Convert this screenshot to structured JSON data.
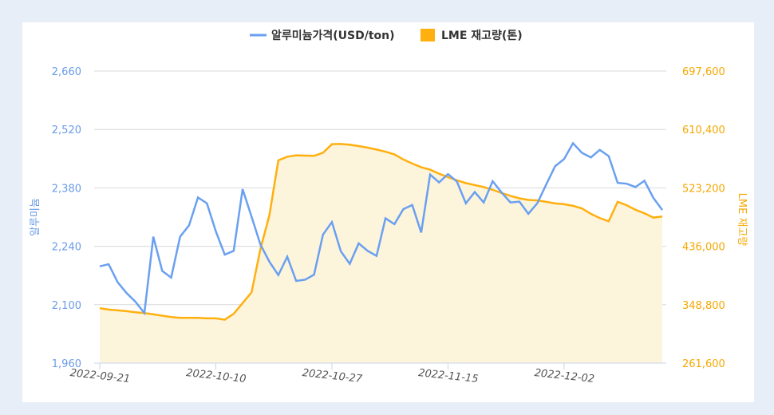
{
  "chart_data": {
    "type": "line",
    "legend": {
      "position": "top",
      "items": [
        {
          "label": "알루미늄가격(USD/ton)",
          "marker": "line",
          "color": "#6aa0f0"
        },
        {
          "label": "LME 재고량(톤)",
          "marker": "square",
          "color": "#ffb00f"
        }
      ]
    },
    "y_left": {
      "label": "알루미늄",
      "range": [
        1960,
        2660
      ],
      "ticks": [
        "2,660",
        "2,520",
        "2,380",
        "2,240",
        "2,100",
        "1,960"
      ],
      "tick_values": [
        2660,
        2520,
        2380,
        2240,
        2100,
        1960
      ],
      "color": "#6a9be8"
    },
    "y_right": {
      "label": "LME 재고량",
      "range": [
        261600,
        697600
      ],
      "ticks": [
        "697,600",
        "610,400",
        "523,200",
        "436,000",
        "348,800",
        "261,600"
      ],
      "tick_values": [
        697600,
        610400,
        523200,
        436000,
        348800,
        261600
      ],
      "color": "#f5a800"
    },
    "x_tick_labels": [
      "2022-09-21",
      "2022-10-10",
      "2022-10-27",
      "2022-11-15",
      "2022-12-02"
    ],
    "grid": true,
    "x": [
      "2022-09-21",
      "2022-09-22",
      "2022-09-23",
      "2022-09-26",
      "2022-09-27",
      "2022-09-28",
      "2022-09-29",
      "2022-09-30",
      "2022-10-03",
      "2022-10-04",
      "2022-10-05",
      "2022-10-06",
      "2022-10-07",
      "2022-10-10",
      "2022-10-11",
      "2022-10-12",
      "2022-10-13",
      "2022-10-14",
      "2022-10-17",
      "2022-10-18",
      "2022-10-19",
      "2022-10-20",
      "2022-10-21",
      "2022-10-24",
      "2022-10-25",
      "2022-10-26",
      "2022-10-27",
      "2022-10-28",
      "2022-10-31",
      "2022-11-01",
      "2022-11-02",
      "2022-11-03",
      "2022-11-04",
      "2022-11-07",
      "2022-11-08",
      "2022-11-09",
      "2022-11-10",
      "2022-11-11",
      "2022-11-14",
      "2022-11-15",
      "2022-11-16",
      "2022-11-17",
      "2022-11-18",
      "2022-11-21",
      "2022-11-22",
      "2022-11-23",
      "2022-11-24",
      "2022-11-25",
      "2022-11-28",
      "2022-11-29",
      "2022-11-30",
      "2022-12-01",
      "2022-12-02",
      "2022-12-05",
      "2022-12-06",
      "2022-12-07",
      "2022-12-08",
      "2022-12-09",
      "2022-12-12",
      "2022-12-13",
      "2022-12-14",
      "2022-12-15",
      "2022-12-16",
      "2022-12-19"
    ],
    "series": [
      {
        "name": "알루미늄가격(USD/ton)",
        "axis": "left",
        "color": "#6aa0f0",
        "values": [
          2192,
          2197,
          2154,
          2128,
          2107,
          2080,
          2263,
          2181,
          2165,
          2263,
          2290,
          2357,
          2343,
          2276,
          2220,
          2229,
          2377,
          2311,
          2244,
          2203,
          2171,
          2215,
          2157,
          2160,
          2172,
          2268,
          2298,
          2228,
          2198,
          2247,
          2229,
          2217,
          2307,
          2293,
          2329,
          2339,
          2273,
          2412,
          2393,
          2413,
          2395,
          2343,
          2370,
          2345,
          2396,
          2369,
          2345,
          2347,
          2318,
          2343,
          2388,
          2432,
          2449,
          2487,
          2464,
          2453,
          2471,
          2456,
          2392,
          2390,
          2382,
          2397,
          2356,
          2327
        ]
      },
      {
        "name": "LME 재고량(톤)",
        "axis": "right",
        "color": "#ffb00f",
        "fill": "#fdf4dc",
        "values": [
          343600,
          341600,
          340400,
          339200,
          337600,
          336400,
          334400,
          332400,
          330400,
          329200,
          329200,
          329200,
          328400,
          328400,
          326400,
          335200,
          351200,
          367200,
          432400,
          482300,
          564300,
          569600,
          571700,
          571300,
          571000,
          575600,
          588400,
          588800,
          587600,
          585600,
          583200,
          580400,
          577200,
          573200,
          565600,
          559600,
          554000,
          550400,
          544400,
          539200,
          534500,
          530400,
          527300,
          524400,
          520400,
          515600,
          511200,
          507600,
          505200,
          504500,
          502400,
          500000,
          498800,
          496400,
          492500,
          484500,
          478100,
          473300,
          502400,
          497300,
          490500,
          485300,
          478800,
          480500
        ]
      }
    ]
  }
}
